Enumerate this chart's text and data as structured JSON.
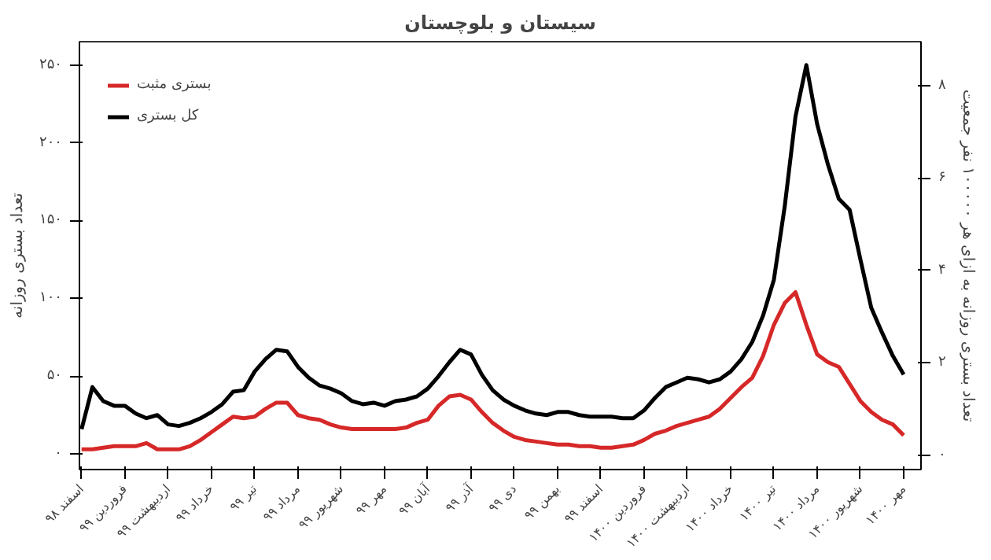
{
  "chart_data": {
    "type": "line",
    "title": "سیستان و بلوچستان",
    "ylabel": "تعداد بستری روزانه",
    "y2label": "تعداد بستری روزانه به ازای هر ۱۰۰۰۰۰ نفر جمعیت",
    "categories": [
      "اسفند ۹۸",
      null,
      null,
      null,
      "فروردین ۹۹",
      null,
      null,
      null,
      "اردیبهشت ۹۹",
      null,
      null,
      null,
      "خرداد ۹۹",
      null,
      null,
      null,
      "تیر ۹۹",
      null,
      null,
      null,
      "مرداد ۹۹",
      null,
      null,
      null,
      "شهریور ۹۹",
      null,
      null,
      null,
      "مهر ۹۹",
      null,
      null,
      null,
      "آبان ۹۹",
      null,
      null,
      null,
      "آذر ۹۹",
      null,
      null,
      null,
      "دی ۹۹",
      null,
      null,
      null,
      "بهمن ۹۹",
      null,
      null,
      null,
      "اسفند ۹۹",
      null,
      null,
      null,
      "فروردین ۱۴۰۰",
      null,
      null,
      null,
      "اردیبهشت ۱۴۰۰",
      null,
      null,
      null,
      "خرداد ۱۴۰۰",
      null,
      null,
      null,
      "تیر ۱۴۰۰",
      null,
      null,
      null,
      "مرداد ۱۴۰۰",
      null,
      null,
      null,
      "شهریور ۱۴۰۰",
      null,
      null,
      null,
      "مهر ۱۴۰۰"
    ],
    "ylim": [
      -10,
      265
    ],
    "yticks": [
      {
        "value": 0,
        "label": "۰"
      },
      {
        "value": 50,
        "label": "۵۰"
      },
      {
        "value": 100,
        "label": "۱۰۰"
      },
      {
        "value": 150,
        "label": "۱۵۰"
      },
      {
        "value": 200,
        "label": "۲۰۰"
      },
      {
        "value": 250,
        "label": "۲۵۰"
      }
    ],
    "y2lim": [
      -0.31,
      8.95
    ],
    "y2ticks": [
      {
        "value": 0,
        "label": "۰"
      },
      {
        "value": 2,
        "label": "۲"
      },
      {
        "value": 4,
        "label": "۴"
      },
      {
        "value": 6,
        "label": "۶"
      },
      {
        "value": 8,
        "label": "۸"
      }
    ],
    "grid": false,
    "legend": "top left",
    "line_style": "solid",
    "series": [
      {
        "name": "بستری مثبت",
        "color": "#d62828",
        "values": [
          3,
          3,
          4,
          5,
          5,
          5,
          7,
          3,
          3,
          3,
          5,
          9,
          14,
          19,
          24,
          23,
          24,
          29,
          33,
          33,
          25,
          23,
          22,
          19,
          17,
          16,
          16,
          16,
          16,
          16,
          17,
          20,
          22,
          31,
          37,
          38,
          35,
          27,
          20,
          15,
          11,
          9,
          8,
          7,
          6,
          6,
          5,
          5,
          4,
          4,
          5,
          6,
          9,
          13,
          15,
          18,
          20,
          22,
          24,
          29,
          36,
          43,
          49,
          63,
          83,
          97,
          104,
          83,
          64,
          59,
          56,
          45,
          34,
          27,
          22,
          19,
          12
        ]
      },
      {
        "name": "کل بستری",
        "color": "#000000",
        "values": [
          16,
          43,
          34,
          31,
          31,
          26,
          23,
          25,
          19,
          18,
          20,
          23,
          27,
          32,
          40,
          41,
          53,
          61,
          67,
          66,
          56,
          49,
          44,
          42,
          39,
          34,
          32,
          33,
          31,
          34,
          35,
          37,
          42,
          50,
          59,
          67,
          64,
          51,
          41,
          35,
          31,
          28,
          26,
          25,
          27,
          27,
          25,
          24,
          24,
          24,
          23,
          23,
          28,
          36,
          43,
          46,
          49,
          48,
          46,
          48,
          53,
          61,
          72,
          89,
          112,
          159,
          217,
          250,
          212,
          186,
          164,
          157,
          125,
          94,
          78,
          63,
          51
        ]
      }
    ]
  }
}
